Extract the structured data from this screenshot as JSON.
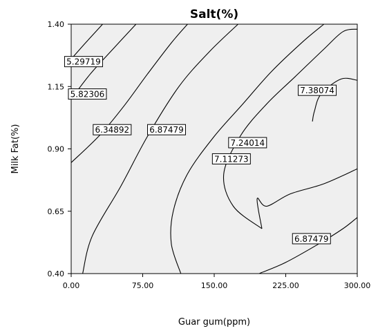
{
  "chart_data": {
    "type": "contour",
    "title": "Salt(%)",
    "xlabel": "Guar gum(ppm)",
    "ylabel": "Milk Fat(%)",
    "xlim": [
      0,
      300
    ],
    "ylim": [
      0.4,
      1.4
    ],
    "x_ticks": [
      "0.00",
      "75.00",
      "150.00",
      "225.00",
      "300.00"
    ],
    "y_ticks": [
      "0.40",
      "0.65",
      "0.90",
      "1.15",
      "1.40"
    ],
    "grid": false,
    "plot_background": "#efefef",
    "line_color": "#000000",
    "contour_levels": [
      {
        "label": "5.29719",
        "points": [
          [
            0,
            1.26
          ],
          [
            15,
            1.325
          ],
          [
            33,
            1.4
          ]
        ],
        "label_at": [
          13,
          1.25
        ]
      },
      {
        "label": "5.82306",
        "points": [
          [
            0,
            1.1
          ],
          [
            20,
            1.2
          ],
          [
            45,
            1.305
          ],
          [
            68,
            1.4
          ]
        ],
        "label_at": [
          17,
          1.12
        ]
      },
      {
        "label": "6.34892",
        "points": [
          [
            0,
            0.845
          ],
          [
            30,
            0.955
          ],
          [
            55,
            1.07
          ],
          [
            80,
            1.2
          ],
          [
            105,
            1.325
          ],
          [
            122,
            1.4
          ]
        ],
        "label_at": [
          43,
          0.977
        ]
      },
      {
        "label": "6.87479",
        "points": [
          [
            12,
            0.4
          ],
          [
            22,
            0.55
          ],
          [
            52,
            0.75
          ],
          [
            80,
            0.95
          ],
          [
            113,
            1.15
          ],
          [
            145,
            1.29
          ],
          [
            175,
            1.4
          ]
        ],
        "label_at": [
          100,
          0.977
        ]
      },
      {
        "label": "7.11273",
        "points": [
          [
            115,
            0.4
          ],
          [
            105,
            0.52
          ],
          [
            107,
            0.65
          ],
          [
            122,
            0.8
          ],
          [
            150,
            0.95
          ],
          [
            180,
            1.08
          ],
          [
            210,
            1.21
          ],
          [
            243,
            1.33
          ],
          [
            265,
            1.4
          ]
        ],
        "label_at": [
          168,
          0.86
        ]
      },
      {
        "label": "7.24014",
        "points": [
          [
            200,
            0.58
          ],
          [
            170,
            0.67
          ],
          [
            160,
            0.8
          ],
          [
            178,
            0.955
          ],
          [
            205,
            1.08
          ],
          [
            235,
            1.19
          ],
          [
            265,
            1.3
          ],
          [
            285,
            1.37
          ],
          [
            300,
            1.38
          ]
        ],
        "label_at": [
          185,
          0.925
        ]
      },
      {
        "label": "7.38074",
        "points": [
          [
            253,
            1.01
          ],
          [
            255,
            1.05
          ],
          [
            262,
            1.12
          ],
          [
            283,
            1.18
          ],
          [
            300,
            1.175
          ]
        ],
        "label_at": [
          258,
          1.135
        ]
      },
      {
        "label": "7.24014",
        "points": [
          [
            300,
            0.82
          ],
          [
            265,
            0.76
          ],
          [
            230,
            0.72
          ],
          [
            205,
            0.67
          ],
          [
            195,
            0.7
          ],
          [
            200,
            0.58
          ]
        ],
        "label_at": null
      },
      {
        "label": "6.87479",
        "points": [
          [
            197,
            0.4
          ],
          [
            225,
            0.445
          ],
          [
            260,
            0.52
          ],
          [
            285,
            0.58
          ],
          [
            300,
            0.625
          ]
        ],
        "label_at": [
          252,
          0.54
        ]
      }
    ]
  }
}
